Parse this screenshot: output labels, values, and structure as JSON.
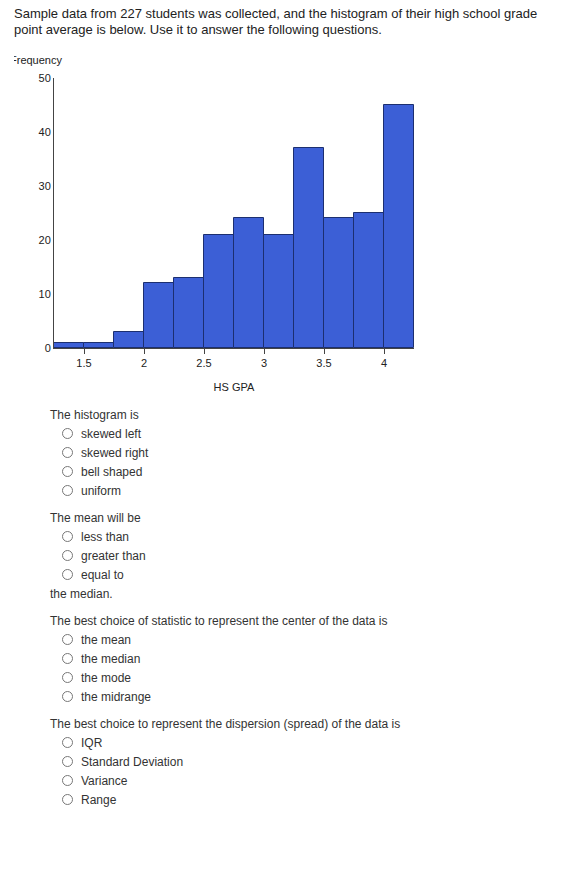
{
  "intro": "Sample data from 227 students was collected, and the histogram of their high school grade point average is below.   Use it to answer the following questions.",
  "chart_data": {
    "type": "histogram",
    "y_label": "Frequency",
    "x_label": "HS GPA",
    "bins": [
      1.25,
      1.5,
      1.75,
      2,
      2.25,
      2.5,
      2.75,
      3,
      3.25,
      3.5,
      3.75,
      4,
      4.25
    ],
    "values": [
      1,
      1,
      3,
      12,
      13,
      21,
      24,
      21,
      37,
      24,
      25,
      45
    ],
    "color": "#3c5fd6",
    "xlim": [
      1.25,
      4.25
    ],
    "xticks": [
      1.5,
      2,
      2.5,
      3,
      3.5,
      4
    ],
    "ylim": [
      0,
      50
    ],
    "yticks": [
      0,
      10,
      20,
      30,
      40,
      50
    ],
    "grid": false
  },
  "questions": [
    {
      "prompt": "The histogram is",
      "options": [
        "skewed left",
        "skewed right",
        "bell shaped",
        "uniform"
      ]
    },
    {
      "prompt": "The mean will be",
      "options": [
        "less than",
        "greater than",
        "equal to"
      ],
      "after": "the median."
    },
    {
      "prompt": "The best choice of statistic to represent the center of the data is",
      "options": [
        "the mean",
        "the median",
        "the mode",
        "the midrange"
      ]
    },
    {
      "prompt": "The best choice to represent the dispersion (spread) of the data is",
      "options": [
        "IQR",
        "Standard Deviation",
        "Variance",
        "Range"
      ]
    }
  ]
}
